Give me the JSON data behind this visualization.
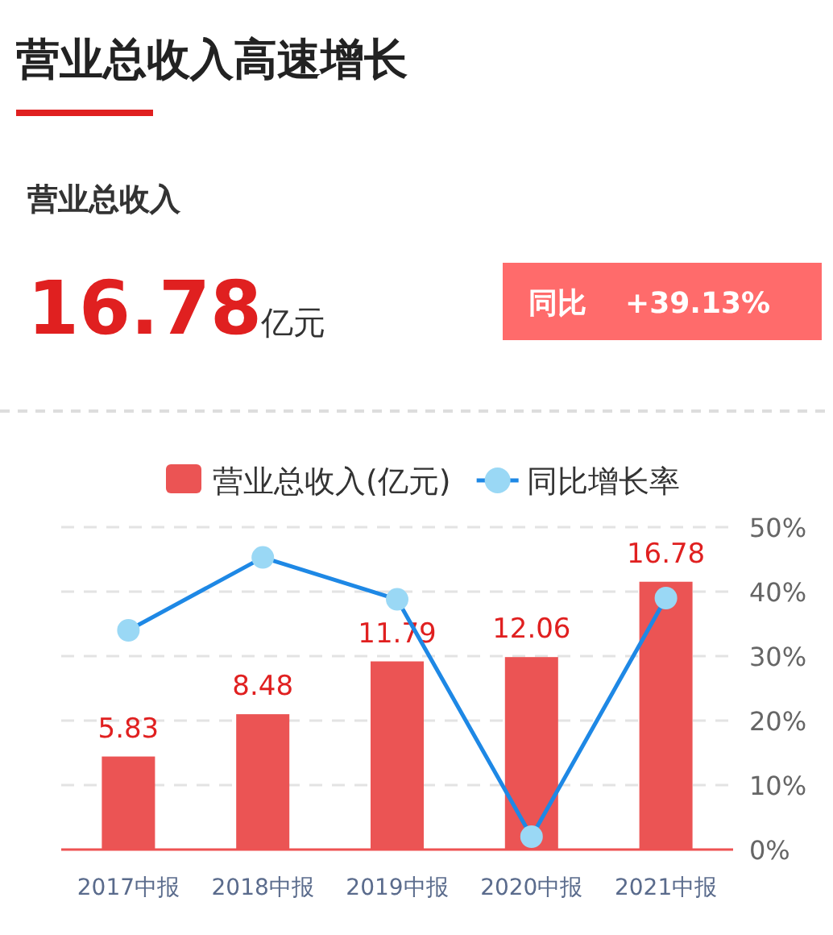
{
  "chart_data": {
    "type": "bar",
    "title": "营业总收入高速增长",
    "annotations": [
      "营业总收入",
      "16.78",
      "亿元",
      "同比",
      "+39.13%"
    ],
    "categories": [
      "2017中报",
      "2018中报",
      "2019中报",
      "2020中报",
      "2021中报"
    ],
    "series": [
      {
        "name": "营业总收入(亿元)",
        "color": "#eb5454",
        "values": [
          5.83,
          8.48,
          11.79,
          12.06,
          16.78
        ],
        "value_labels": [
          "5.83",
          "8.48",
          "11.79",
          "12.06",
          "16.78"
        ]
      },
      {
        "name": "同比增长率",
        "type": "line",
        "axis": "y2",
        "color": "#1e88e5",
        "values": [
          34,
          45.3,
          38.8,
          2,
          39
        ]
      }
    ],
    "ylim": [
      0,
      20.2
    ],
    "y2lim": [
      0,
      50
    ],
    "y2ticks": [
      {
        "value": 0,
        "label": "0%"
      },
      {
        "value": 10,
        "label": "10%"
      },
      {
        "value": 20,
        "label": "20%"
      },
      {
        "value": 30,
        "label": "30%"
      },
      {
        "value": 40,
        "label": "40%"
      },
      {
        "value": 50,
        "label": "50%"
      }
    ],
    "grid": "y",
    "legend": "top",
    "marker": "circle"
  }
}
